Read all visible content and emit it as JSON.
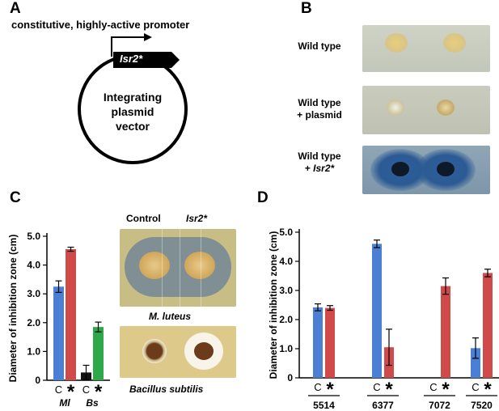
{
  "panels": {
    "a": {
      "letter": "A",
      "promoter_label": "constitutive, highly-active promoter",
      "gene_label": "Isr2*",
      "plasmid_lines": [
        "Integrating",
        "plasmid",
        "vector"
      ]
    },
    "b": {
      "letter": "B",
      "rows": [
        {
          "line1": "Wild type",
          "line2": "",
          "line2_italic": ""
        },
        {
          "line1": "Wild type",
          "line2": "+ plasmid",
          "line2_italic": ""
        },
        {
          "line1": "Wild type",
          "line2": "+ ",
          "line2_italic": "Isr2*"
        }
      ]
    },
    "c": {
      "letter": "C",
      "photo_top_labels": {
        "control": "Control",
        "isr2": "Isr2*"
      },
      "photo_caption_1": "M. luteus",
      "photo_caption_2": "Bacillus subtilis"
    },
    "d": {
      "letter": "D"
    }
  },
  "colors": {
    "control": "#4a7fd4",
    "isr2": "#d04a4a",
    "bs_isr2": "#2fa84a",
    "bs_control": "#111111"
  },
  "chart_data": [
    {
      "type": "bar",
      "panel": "C",
      "ylabel": "Diameter of inhibition zone (cm)",
      "ylim": [
        0,
        5.0
      ],
      "yticks": [
        "0",
        "1.0",
        "2.0",
        "3.0",
        "4.0",
        "5.0"
      ],
      "groups": [
        {
          "name": "Ml",
          "bars": [
            {
              "label": "C",
              "value": 3.25,
              "err": 0.2,
              "color": "#4a7fd4"
            },
            {
              "label": "*",
              "value": 4.55,
              "err": 0.07,
              "color": "#d04a4a"
            }
          ]
        },
        {
          "name": "Bs",
          "bars": [
            {
              "label": "C",
              "value": 0.27,
              "err": 0.25,
              "color": "#111111"
            },
            {
              "label": "*",
              "value": 1.85,
              "err": 0.17,
              "color": "#2fa84a"
            }
          ]
        }
      ]
    },
    {
      "type": "bar",
      "panel": "D",
      "ylabel": "Diameter of inhibition zone (cm)",
      "ylim": [
        0,
        5.0
      ],
      "yticks": [
        "0",
        "1.0",
        "2.0",
        "3.0",
        "4.0",
        "5.0"
      ],
      "groups": [
        {
          "name": "5514",
          "bars": [
            {
              "label": "C",
              "value": 2.42,
              "err": 0.12,
              "color": "#4a7fd4"
            },
            {
              "label": "*",
              "value": 2.4,
              "err": 0.08,
              "color": "#d04a4a"
            }
          ]
        },
        {
          "name": "6377",
          "bars": [
            {
              "label": "C",
              "value": 4.6,
              "err": 0.13,
              "color": "#4a7fd4"
            },
            {
              "label": "*",
              "value": 1.05,
              "err": 0.62,
              "color": "#d04a4a"
            }
          ]
        },
        {
          "name": "7072",
          "bars": [
            {
              "label": "C",
              "value": 0,
              "err": 0,
              "color": "#4a7fd4"
            },
            {
              "label": "*",
              "value": 3.15,
              "err": 0.28,
              "color": "#d04a4a"
            }
          ]
        },
        {
          "name": "7520",
          "bars": [
            {
              "label": "C",
              "value": 1.02,
              "err": 0.35,
              "color": "#4a7fd4"
            },
            {
              "label": "*",
              "value": 3.6,
              "err": 0.13,
              "color": "#d04a4a"
            }
          ]
        }
      ]
    }
  ]
}
